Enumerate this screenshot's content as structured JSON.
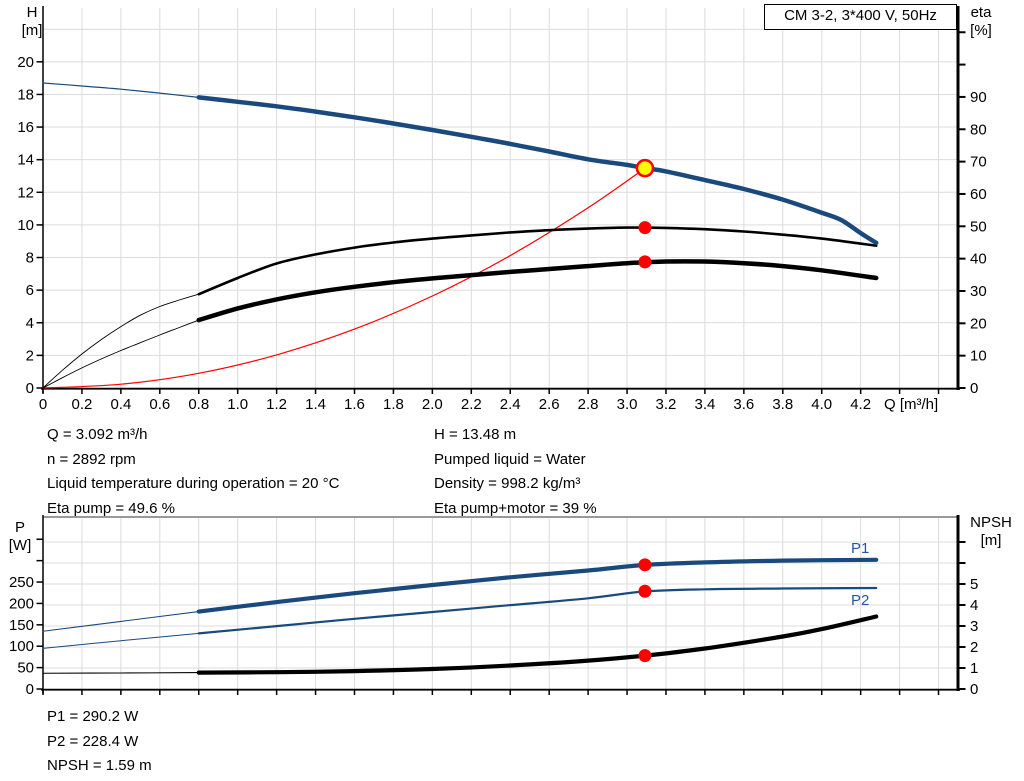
{
  "title_box": {
    "text": "CM 3-2, 3*400 V, 50Hz"
  },
  "colors": {
    "curve_blue": "#1a4a7d",
    "label_blue": "#2456a4",
    "red": "#ff0000",
    "yellow": "#ffff00",
    "black": "#000000",
    "grid": "#dcdcdc",
    "border_gray": "#999999",
    "background": "#ffffff"
  },
  "info_top": {
    "left": [
      "Q = 3.092 m³/h",
      "n = 2892 rpm",
      "Liquid temperature during operation = 20 °C",
      "Eta pump = 49.6 %"
    ],
    "right": [
      "H = 13.48 m",
      "Pumped liquid = Water",
      "Density = 998.2 kg/m³",
      "Eta pump+motor = 39 %"
    ]
  },
  "info_bottom": [
    "P1 = 290.2 W",
    "P2 = 228.4 W",
    "NPSH = 1.59 m"
  ],
  "chart_data": [
    {
      "id": "top",
      "type": "line",
      "title": "CM 3-2, 3*400 V, 50Hz",
      "x_axis": {
        "label": "Q [m³/h]",
        "tick_step": 0.2,
        "tick_max": 4.6,
        "label_max": 4.2,
        "range": [
          0,
          4.7
        ]
      },
      "y_left": {
        "name": "H",
        "unit": "[m]",
        "ticks": [
          0,
          2,
          4,
          6,
          8,
          10,
          12,
          14,
          16,
          18,
          20
        ],
        "grid_max": 22,
        "range": [
          0,
          23.3
        ]
      },
      "y_right": {
        "name": "eta",
        "unit": "[%]",
        "ticks": [
          0,
          10,
          20,
          30,
          40,
          50,
          60,
          70,
          80,
          90
        ],
        "extra_ticks": [
          100,
          110
        ],
        "range": [
          0,
          117.5
        ]
      },
      "series": [
        {
          "name": "system-curve",
          "axis": "left",
          "color_key": "red",
          "width": 1.2,
          "thick_from": null,
          "points": [
            [
              0,
              0
            ],
            [
              0.4,
              0.23
            ],
            [
              0.8,
              0.9
            ],
            [
              1.2,
              2.03
            ],
            [
              1.6,
              3.61
            ],
            [
              2.0,
              5.64
            ],
            [
              2.4,
              8.12
            ],
            [
              2.8,
              11.05
            ],
            [
              3.092,
              13.48
            ]
          ]
        },
        {
          "name": "eta-pump",
          "axis": "right",
          "color_key": "black",
          "thin_width": 0.9,
          "thick_width": 2.6,
          "thick_from": 0.8,
          "points": [
            [
              0,
              0
            ],
            [
              0.1,
              5.5
            ],
            [
              0.2,
              10.5
            ],
            [
              0.3,
              15
            ],
            [
              0.4,
              19
            ],
            [
              0.5,
              22.5
            ],
            [
              0.6,
              25.2
            ],
            [
              0.7,
              27.2
            ],
            [
              0.8,
              29
            ],
            [
              1.0,
              34
            ],
            [
              1.2,
              38.5
            ],
            [
              1.4,
              41.3
            ],
            [
              1.6,
              43.4
            ],
            [
              1.8,
              45
            ],
            [
              2.0,
              46.2
            ],
            [
              2.2,
              47.2
            ],
            [
              2.4,
              48.1
            ],
            [
              2.6,
              48.8
            ],
            [
              2.8,
              49.3
            ],
            [
              3.0,
              49.6
            ],
            [
              3.2,
              49.5
            ],
            [
              3.4,
              49.1
            ],
            [
              3.6,
              48.4
            ],
            [
              3.8,
              47.4
            ],
            [
              4.0,
              46.2
            ],
            [
              4.28,
              44
            ]
          ]
        },
        {
          "name": "eta-pump-motor",
          "axis": "right",
          "color_key": "black",
          "thin_width": 0.9,
          "thick_width": 4.5,
          "thick_from": 0.8,
          "points": [
            [
              0,
              0
            ],
            [
              0.1,
              3.2
            ],
            [
              0.2,
              6.2
            ],
            [
              0.3,
              9
            ],
            [
              0.4,
              11.6
            ],
            [
              0.5,
              14
            ],
            [
              0.6,
              16.4
            ],
            [
              0.7,
              18.7
            ],
            [
              0.8,
              21
            ],
            [
              1.0,
              24.6
            ],
            [
              1.2,
              27.4
            ],
            [
              1.4,
              29.6
            ],
            [
              1.6,
              31.3
            ],
            [
              1.8,
              32.7
            ],
            [
              2.0,
              33.9
            ],
            [
              2.2,
              34.9
            ],
            [
              2.4,
              35.9
            ],
            [
              2.6,
              36.8
            ],
            [
              2.8,
              37.7
            ],
            [
              3.0,
              38.6
            ],
            [
              3.2,
              39.1
            ],
            [
              3.4,
              39.1
            ],
            [
              3.6,
              38.6
            ],
            [
              3.8,
              37.7
            ],
            [
              4.0,
              36.4
            ],
            [
              4.28,
              34
            ]
          ]
        },
        {
          "name": "head-curve",
          "axis": "left",
          "color_key": "curve_blue",
          "thin_width": 1.2,
          "thick_width": 4.5,
          "thick_from": 0.8,
          "points": [
            [
              0,
              18.7
            ],
            [
              0.2,
              18.52
            ],
            [
              0.4,
              18.32
            ],
            [
              0.6,
              18.08
            ],
            [
              0.8,
              17.82
            ],
            [
              1.0,
              17.55
            ],
            [
              1.2,
              17.27
            ],
            [
              1.4,
              16.95
            ],
            [
              1.6,
              16.6
            ],
            [
              1.8,
              16.22
            ],
            [
              2.0,
              15.82
            ],
            [
              2.2,
              15.4
            ],
            [
              2.4,
              14.97
            ],
            [
              2.6,
              14.5
            ],
            [
              2.8,
              14.02
            ],
            [
              3.0,
              13.68
            ],
            [
              3.092,
              13.48
            ],
            [
              3.2,
              13.28
            ],
            [
              3.4,
              12.75
            ],
            [
              3.6,
              12.2
            ],
            [
              3.8,
              11.55
            ],
            [
              4.0,
              10.75
            ],
            [
              4.1,
              10.3
            ],
            [
              4.2,
              9.5
            ],
            [
              4.28,
              8.9
            ]
          ]
        }
      ],
      "markers": [
        {
          "name": "duty-point",
          "q": 3.092,
          "v": 13.48,
          "axis": "left",
          "style": "duty"
        },
        {
          "name": "eta-pump-point",
          "q": 3.092,
          "v": 49.6,
          "axis": "right",
          "style": "dot"
        },
        {
          "name": "eta-pump-motor-point",
          "q": 3.092,
          "v": 39,
          "axis": "right",
          "style": "dot"
        }
      ]
    },
    {
      "id": "bottom",
      "type": "line",
      "x_axis": {
        "label": "",
        "tick_step": 0.2,
        "tick_max": 4.6,
        "label_max": -1,
        "range": [
          0,
          4.7
        ]
      },
      "y_left": {
        "name": "P",
        "unit": "[W]",
        "ticks": [
          0,
          50,
          100,
          150,
          200,
          250
        ],
        "extra_ticks": [
          300,
          350
        ],
        "range": [
          0,
          402
        ]
      },
      "y_right": {
        "name": "NPSH",
        "unit": "[m]",
        "ticks": [
          0,
          1,
          2,
          3,
          4,
          5
        ],
        "extra_ticks": [
          6,
          7
        ],
        "range": [
          0,
          8.19
        ]
      },
      "series": [
        {
          "name": "P1",
          "label": "P1",
          "axis": "left",
          "color_key": "curve_blue",
          "thin_width": 1.1,
          "thick_width": 4.2,
          "thick_from": 0.8,
          "points": [
            [
              0,
              135
            ],
            [
              0.4,
              158
            ],
            [
              0.8,
              181
            ],
            [
              1.2,
              203
            ],
            [
              1.6,
              224
            ],
            [
              2.0,
              243
            ],
            [
              2.4,
              261
            ],
            [
              2.8,
              277
            ],
            [
              3.092,
              290
            ],
            [
              3.4,
              296
            ],
            [
              3.8,
              300
            ],
            [
              4.28,
              302
            ]
          ]
        },
        {
          "name": "P2",
          "label": "P2",
          "axis": "left",
          "color_key": "curve_blue",
          "thin_width": 1.0,
          "thick_width": 2.2,
          "thick_from": 0.8,
          "points": [
            [
              0,
              95
            ],
            [
              0.4,
              113
            ],
            [
              0.8,
              130
            ],
            [
              1.2,
              147
            ],
            [
              1.6,
              164
            ],
            [
              2.0,
              180
            ],
            [
              2.4,
              196
            ],
            [
              2.8,
              212
            ],
            [
              3.092,
              228
            ],
            [
              3.4,
              233
            ],
            [
              3.8,
              235
            ],
            [
              4.28,
              236
            ]
          ]
        },
        {
          "name": "NPSH",
          "axis": "right",
          "color_key": "black",
          "thin_width": 1.1,
          "thick_width": 4.2,
          "thick_from": 0.8,
          "points": [
            [
              0,
              0.75
            ],
            [
              0.4,
              0.76
            ],
            [
              0.8,
              0.78
            ],
            [
              1.2,
              0.8
            ],
            [
              1.6,
              0.85
            ],
            [
              2.0,
              0.95
            ],
            [
              2.4,
              1.12
            ],
            [
              2.8,
              1.35
            ],
            [
              3.092,
              1.59
            ],
            [
              3.4,
              1.93
            ],
            [
              3.8,
              2.5
            ],
            [
              4.0,
              2.85
            ],
            [
              4.28,
              3.45
            ]
          ]
        }
      ],
      "markers": [
        {
          "name": "p1-point",
          "q": 3.092,
          "v": 290.2,
          "axis": "left",
          "style": "dot"
        },
        {
          "name": "p2-point",
          "q": 3.092,
          "v": 228.4,
          "axis": "left",
          "style": "dot"
        },
        {
          "name": "npsh-point",
          "q": 3.092,
          "v": 1.59,
          "axis": "right",
          "style": "dot"
        }
      ]
    }
  ]
}
